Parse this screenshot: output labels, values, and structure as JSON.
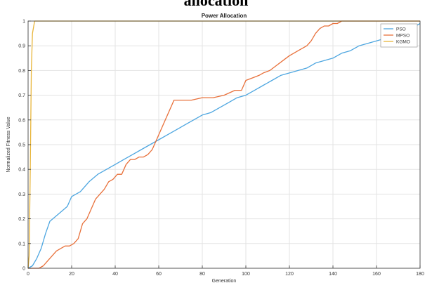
{
  "caption": "allocation",
  "chart_data": {
    "type": "line",
    "title": "Power Allocation",
    "xlabel": "Generation",
    "ylabel": "Normalized Fitness Value",
    "xlim": [
      0,
      180
    ],
    "ylim": [
      0,
      1
    ],
    "xticks": [
      0,
      20,
      40,
      60,
      80,
      100,
      120,
      140,
      160,
      180
    ],
    "yticks": [
      0,
      0.1,
      0.2,
      0.3,
      0.4,
      0.5,
      0.6,
      0.7,
      0.8,
      0.9,
      1
    ],
    "grid": true,
    "legend_position": "top-right",
    "series": [
      {
        "name": "PSO",
        "color": "#4da6e0",
        "x": [
          0,
          2,
          4,
          6,
          8,
          10,
          14,
          18,
          20,
          24,
          28,
          32,
          36,
          40,
          44,
          48,
          52,
          56,
          60,
          64,
          68,
          72,
          76,
          80,
          84,
          88,
          92,
          96,
          100,
          104,
          108,
          112,
          116,
          120,
          124,
          128,
          132,
          136,
          140,
          144,
          148,
          152,
          156,
          160,
          164,
          168,
          172,
          176,
          180
        ],
        "y": [
          0,
          0.01,
          0.04,
          0.08,
          0.14,
          0.19,
          0.22,
          0.25,
          0.29,
          0.31,
          0.35,
          0.38,
          0.4,
          0.42,
          0.44,
          0.46,
          0.48,
          0.5,
          0.52,
          0.54,
          0.56,
          0.58,
          0.6,
          0.62,
          0.63,
          0.65,
          0.67,
          0.69,
          0.7,
          0.72,
          0.74,
          0.76,
          0.78,
          0.79,
          0.8,
          0.81,
          0.83,
          0.84,
          0.85,
          0.87,
          0.88,
          0.9,
          0.91,
          0.92,
          0.93,
          0.95,
          0.96,
          0.97,
          0.99
        ]
      },
      {
        "name": "MPSO",
        "color": "#e8703a",
        "x": [
          0,
          5,
          7,
          9,
          11,
          13,
          15,
          17,
          19,
          21,
          23,
          25,
          27,
          29,
          31,
          33,
          35,
          37,
          39,
          41,
          43,
          45,
          47,
          49,
          51,
          53,
          55,
          57,
          59,
          61,
          63,
          65,
          67,
          70,
          75,
          80,
          85,
          90,
          95,
          98,
          100,
          103,
          106,
          108,
          111,
          114,
          117,
          120,
          122,
          124,
          126,
          128,
          130,
          132,
          134,
          136,
          138,
          140,
          142,
          144,
          146,
          150,
          155,
          160,
          170,
          180
        ],
        "y": [
          0,
          0,
          0.01,
          0.03,
          0.05,
          0.07,
          0.08,
          0.09,
          0.09,
          0.1,
          0.12,
          0.18,
          0.2,
          0.24,
          0.28,
          0.3,
          0.32,
          0.35,
          0.36,
          0.38,
          0.38,
          0.42,
          0.44,
          0.44,
          0.45,
          0.45,
          0.46,
          0.48,
          0.52,
          0.56,
          0.6,
          0.64,
          0.68,
          0.68,
          0.68,
          0.69,
          0.69,
          0.7,
          0.72,
          0.72,
          0.76,
          0.77,
          0.78,
          0.79,
          0.8,
          0.82,
          0.84,
          0.86,
          0.87,
          0.88,
          0.89,
          0.9,
          0.92,
          0.95,
          0.97,
          0.98,
          0.98,
          0.99,
          0.99,
          1.0,
          1.0,
          1.0,
          1.0,
          1.0,
          1.0,
          1.0
        ]
      },
      {
        "name": "KGMO",
        "color": "#e8b53a",
        "x": [
          0,
          0.5,
          1,
          1.5,
          2,
          3,
          180
        ],
        "y": [
          0,
          0.05,
          0.4,
          0.8,
          0.95,
          1.0,
          1.0
        ]
      }
    ]
  }
}
